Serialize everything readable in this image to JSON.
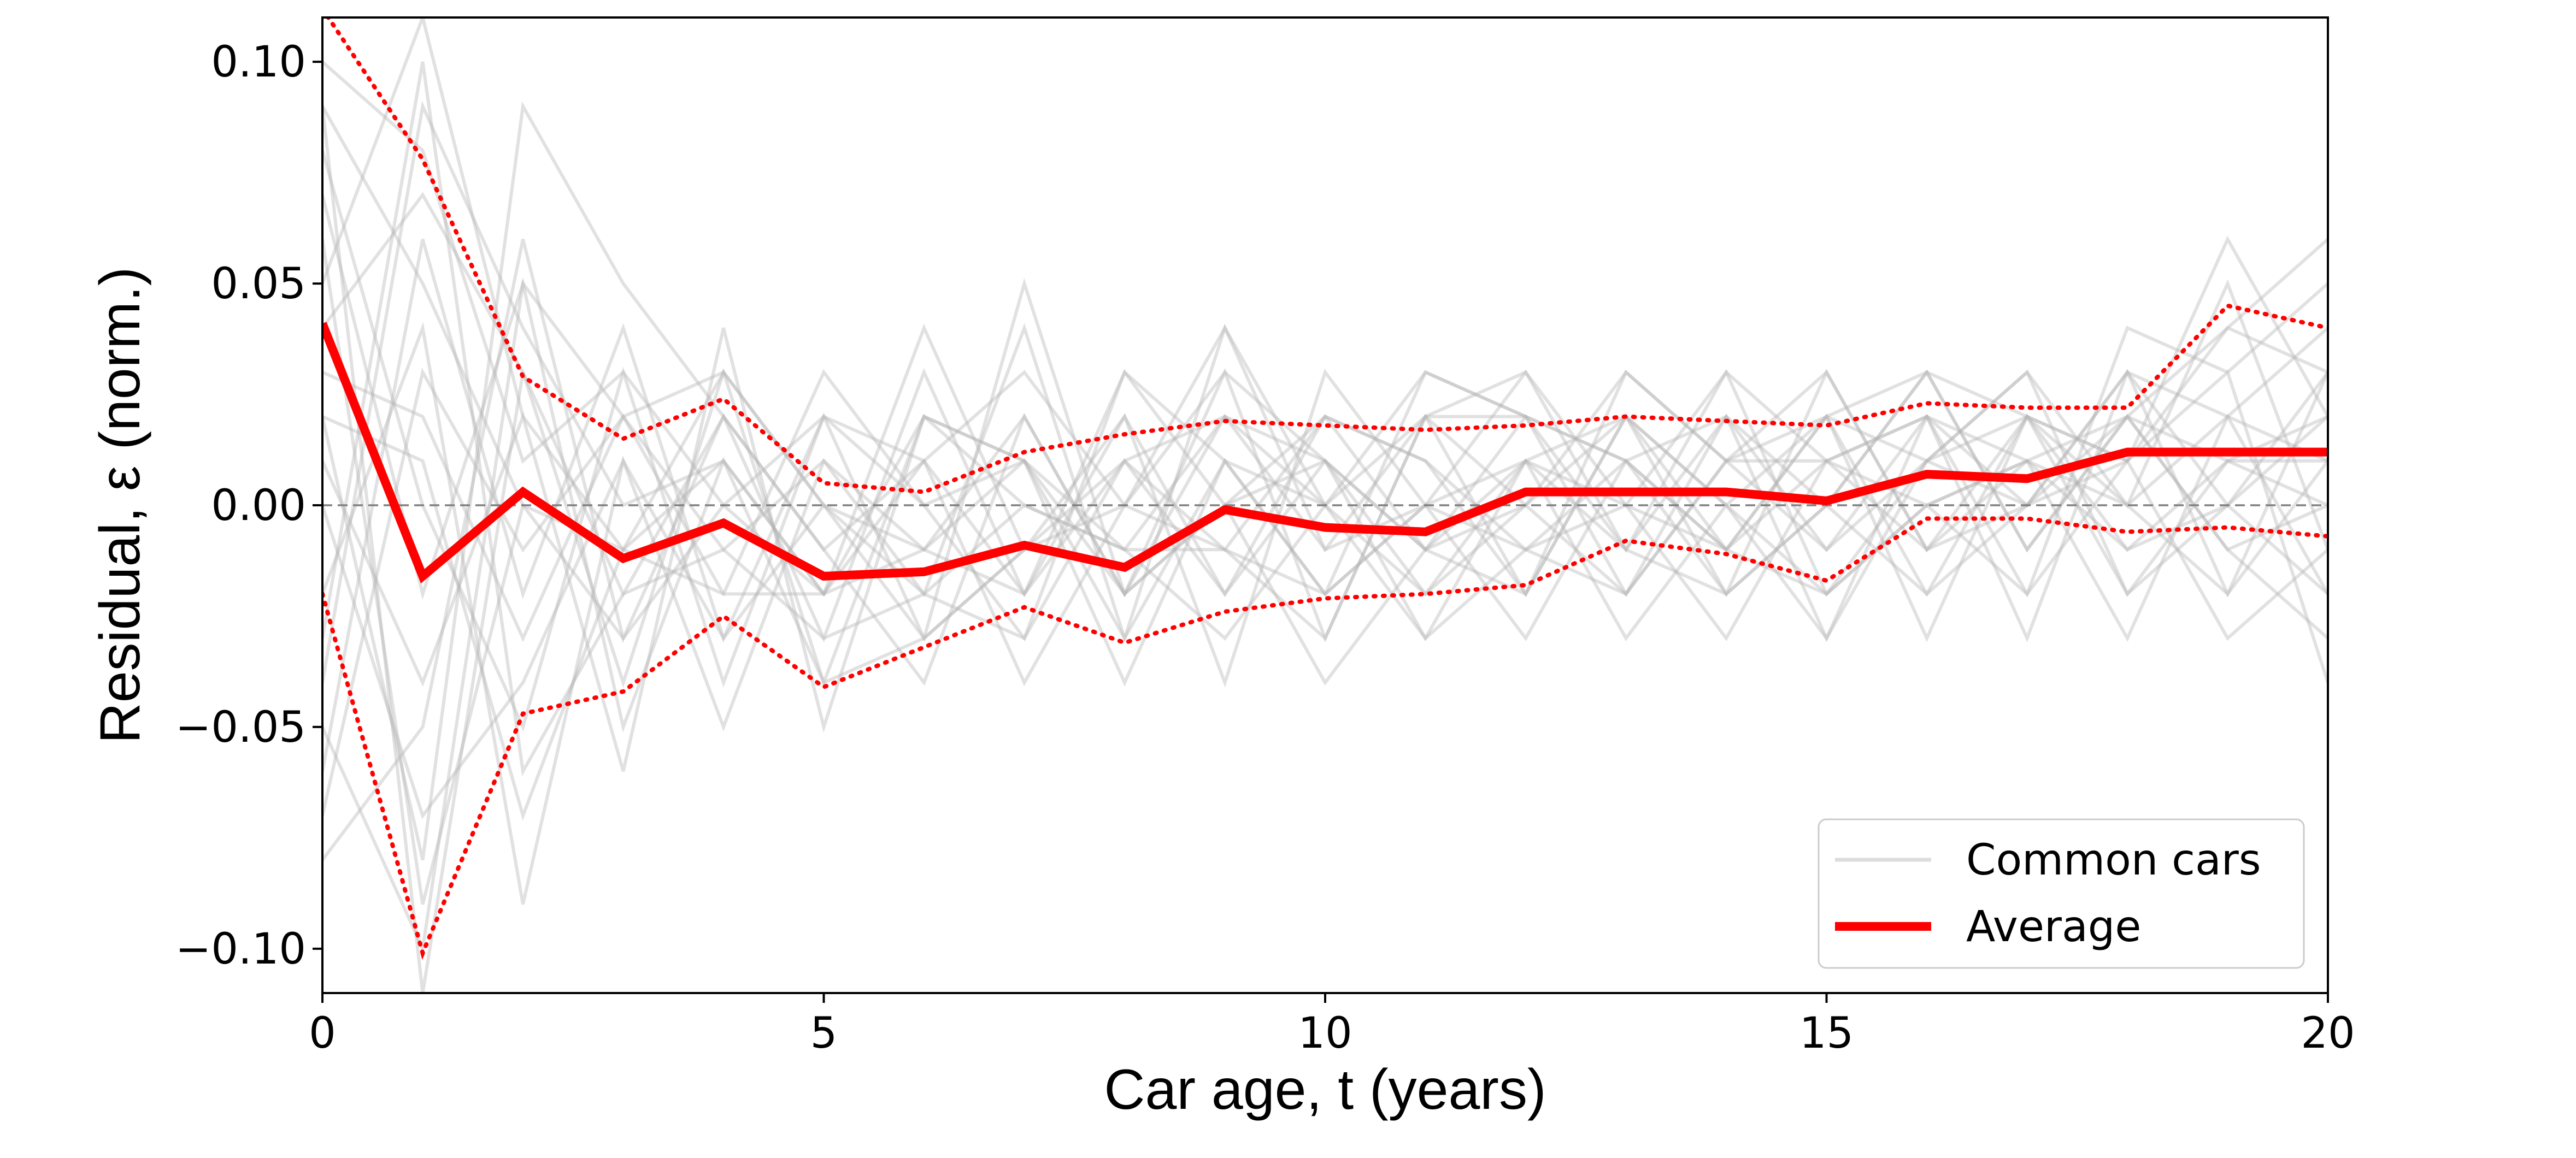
{
  "chart_data": {
    "type": "line",
    "xlabel": "Car age, t (years)",
    "ylabel": "Residual, ε (norm.)",
    "xlim": [
      0,
      20
    ],
    "ylim": [
      -0.11,
      0.11
    ],
    "x_ticks": [
      {
        "value": 0,
        "label": "0"
      },
      {
        "value": 5,
        "label": "5"
      },
      {
        "value": 10,
        "label": "10"
      },
      {
        "value": 15,
        "label": "15"
      },
      {
        "value": 20,
        "label": "20"
      }
    ],
    "y_ticks": [
      {
        "value": 0.1,
        "label": "0.10"
      },
      {
        "value": 0.05,
        "label": "0.05"
      },
      {
        "value": 0.0,
        "label": "0.00"
      },
      {
        "value": -0.05,
        "label": "−0.05"
      },
      {
        "value": -0.1,
        "label": "−0.10"
      }
    ],
    "zero_line": true,
    "grid": false,
    "legend": {
      "position": "lower-right",
      "entries": [
        {
          "label": "Common cars",
          "style": "thin-gray"
        },
        {
          "label": "Average",
          "style": "thick-red"
        }
      ]
    },
    "colors": {
      "average": "#ff0000",
      "band": "#ff0000",
      "common": "#b4b4b4",
      "zero": "#808080"
    },
    "x": [
      0,
      1,
      2,
      3,
      4,
      5,
      6,
      7,
      8,
      9,
      10,
      11,
      12,
      13,
      14,
      15,
      16,
      17,
      18,
      19,
      20
    ],
    "average": [
      0.041,
      -0.016,
      0.003,
      -0.012,
      -0.004,
      -0.016,
      -0.015,
      -0.009,
      -0.014,
      -0.001,
      -0.005,
      -0.006,
      0.003,
      0.003,
      0.003,
      0.001,
      0.007,
      0.006,
      0.012,
      0.012,
      0.012
    ],
    "upper_band": [
      0.112,
      0.078,
      0.029,
      0.015,
      0.024,
      0.005,
      0.003,
      0.012,
      0.016,
      0.019,
      0.018,
      0.017,
      0.018,
      0.02,
      0.019,
      0.018,
      0.023,
      0.022,
      0.022,
      0.045,
      0.04
    ],
    "lower_band": [
      -0.02,
      -0.101,
      -0.047,
      -0.042,
      -0.025,
      -0.041,
      -0.032,
      -0.023,
      -0.031,
      -0.024,
      -0.021,
      -0.02,
      -0.018,
      -0.008,
      -0.011,
      -0.017,
      -0.003,
      -0.003,
      -0.006,
      -0.005,
      -0.007
    ],
    "common_cars": [
      [
        0.05,
        0.11,
        0.02,
        -0.01,
        0.01,
        -0.02,
        -0.01,
        0.01,
        -0.02,
        0.02,
        0.01,
        -0.01,
        0.02,
        0.01,
        -0.01,
        0.02,
        0.01,
        0.02,
        0.01,
        0.04,
        0.03
      ],
      [
        0.02,
        -0.08,
        0.09,
        0.05,
        0.02,
        -0.01,
        0.01,
        -0.02,
        0.03,
        0.01,
        -0.02,
        0.0,
        0.01,
        -0.01,
        0.02,
        0.0,
        0.03,
        -0.01,
        0.02,
        0.01,
        0.02
      ],
      [
        -0.03,
        0.1,
        -0.06,
        -0.02,
        -0.01,
        -0.03,
        -0.02,
        0.0,
        -0.01,
        -0.03,
        0.0,
        -0.02,
        0.01,
        0.02,
        0.0,
        -0.02,
        0.0,
        0.01,
        -0.01,
        0.0,
        -0.02
      ],
      [
        0.09,
        -0.11,
        0.03,
        -0.04,
        0.03,
        0.0,
        -0.03,
        0.05,
        -0.02,
        0.0,
        0.02,
        -0.01,
        -0.02,
        0.03,
        0.01,
        -0.01,
        0.02,
        0.0,
        0.03,
        0.02,
        0.01
      ],
      [
        -0.06,
        0.06,
        -0.02,
        0.04,
        -0.03,
        0.02,
        0.01,
        -0.04,
        0.0,
        -0.01,
        -0.03,
        0.02,
        0.0,
        -0.02,
        0.01,
        0.03,
        -0.01,
        0.02,
        0.0,
        -0.02,
        0.01
      ],
      [
        0.07,
        -0.02,
        0.05,
        -0.05,
        0.01,
        -0.04,
        0.02,
        0.01,
        -0.03,
        0.04,
        -0.01,
        0.0,
        0.03,
        0.0,
        -0.03,
        0.01,
        0.02,
        -0.02,
        0.04,
        0.03,
        0.05
      ],
      [
        -0.02,
        0.04,
        -0.09,
        0.01,
        -0.05,
        0.01,
        -0.01,
        -0.02,
        0.02,
        -0.02,
        0.01,
        -0.03,
        -0.01,
        0.01,
        0.02,
        -0.03,
        0.01,
        0.03,
        -0.02,
        0.01,
        0.0
      ],
      [
        0.1,
        0.08,
        0.01,
        0.03,
        0.0,
        -0.02,
        0.04,
        -0.01,
        0.01,
        0.02,
        0.0,
        0.02,
        -0.02,
        0.02,
        -0.01,
        0.01,
        -0.01,
        0.0,
        0.01,
        0.06,
        0.02
      ],
      [
        -0.08,
        -0.05,
        0.06,
        -0.03,
        0.02,
        -0.01,
        -0.04,
        0.02,
        -0.02,
        0.0,
        -0.04,
        -0.01,
        0.01,
        -0.03,
        0.0,
        0.02,
        0.03,
        -0.01,
        0.02,
        -0.01,
        -0.03
      ],
      [
        0.03,
        0.02,
        -0.03,
        0.02,
        0.03,
        0.0,
        -0.02,
        -0.03,
        0.01,
        -0.01,
        0.02,
        0.01,
        -0.01,
        0.0,
        0.03,
        -0.02,
        0.0,
        0.01,
        -0.03,
        0.02,
        0.04
      ],
      [
        0.06,
        -0.09,
        0.0,
        -0.01,
        -0.02,
        0.03,
        0.0,
        0.01,
        -0.04,
        0.01,
        -0.02,
        0.03,
        0.02,
        -0.01,
        -0.02,
        0.0,
        -0.02,
        0.02,
        0.01,
        -0.03,
        -0.01
      ],
      [
        -0.04,
        0.09,
        0.04,
        0.0,
        0.01,
        -0.02,
        0.01,
        0.03,
        0.0,
        0.03,
        0.01,
        -0.02,
        0.0,
        0.03,
        0.01,
        0.01,
        0.02,
        -0.03,
        0.03,
        0.0,
        0.03
      ],
      [
        0.08,
        0.0,
        -0.05,
        0.03,
        -0.04,
        0.02,
        -0.03,
        -0.01,
        0.02,
        -0.04,
        0.03,
        0.0,
        -0.03,
        0.01,
        -0.02,
        0.03,
        -0.01,
        0.01,
        0.0,
        0.02,
        -0.02
      ],
      [
        0.01,
        -0.04,
        0.02,
        -0.06,
        0.04,
        -0.05,
        0.02,
        0.0,
        -0.01,
        0.02,
        -0.01,
        0.02,
        0.02,
        -0.02,
        0.02,
        -0.01,
        0.01,
        0.0,
        0.02,
        0.04,
        0.06
      ],
      [
        -0.07,
        0.03,
        -0.01,
        0.02,
        -0.01,
        0.01,
        -0.02,
        0.04,
        -0.03,
        0.01,
        0.0,
        -0.03,
        0.01,
        0.0,
        -0.01,
        0.02,
        -0.03,
        0.02,
        -0.01,
        0.01,
        0.01
      ],
      [
        0.04,
        0.07,
        0.03,
        -0.02,
        0.02,
        -0.03,
        0.03,
        -0.02,
        0.01,
        -0.02,
        0.02,
        0.01,
        -0.02,
        0.02,
        0.0,
        -0.03,
        0.02,
        0.01,
        0.02,
        -0.01,
        0.0
      ],
      [
        0.0,
        -0.07,
        -0.04,
        0.01,
        -0.03,
        0.0,
        -0.01,
        0.02,
        -0.02,
        0.03,
        -0.03,
        0.02,
        0.03,
        -0.01,
        0.03,
        0.01,
        0.0,
        -0.02,
        0.01,
        0.03,
        -0.04
      ],
      [
        0.09,
        0.05,
        0.0,
        -0.03,
        0.0,
        0.02,
        0.0,
        -0.03,
        0.03,
        0.0,
        0.01,
        -0.01,
        0.0,
        0.02,
        -0.02,
        0.0,
        0.03,
        0.02,
        -0.02,
        0.0,
        0.02
      ],
      [
        -0.05,
        -0.1,
        0.05,
        0.02,
        -0.02,
        -0.02,
        0.02,
        0.01,
        -0.01,
        -0.01,
        -0.02,
        0.0,
        -0.01,
        -0.02,
        0.01,
        0.02,
        -0.02,
        0.0,
        0.03,
        -0.02,
        0.03
      ],
      [
        0.02,
        0.01,
        -0.07,
        -0.01,
        0.03,
        -0.04,
        -0.03,
        -0.01,
        0.0,
        0.04,
        0.0,
        0.03,
        0.02,
        0.01,
        -0.01,
        -0.02,
        0.01,
        0.03,
        0.0,
        0.05,
        -0.01
      ]
    ]
  }
}
